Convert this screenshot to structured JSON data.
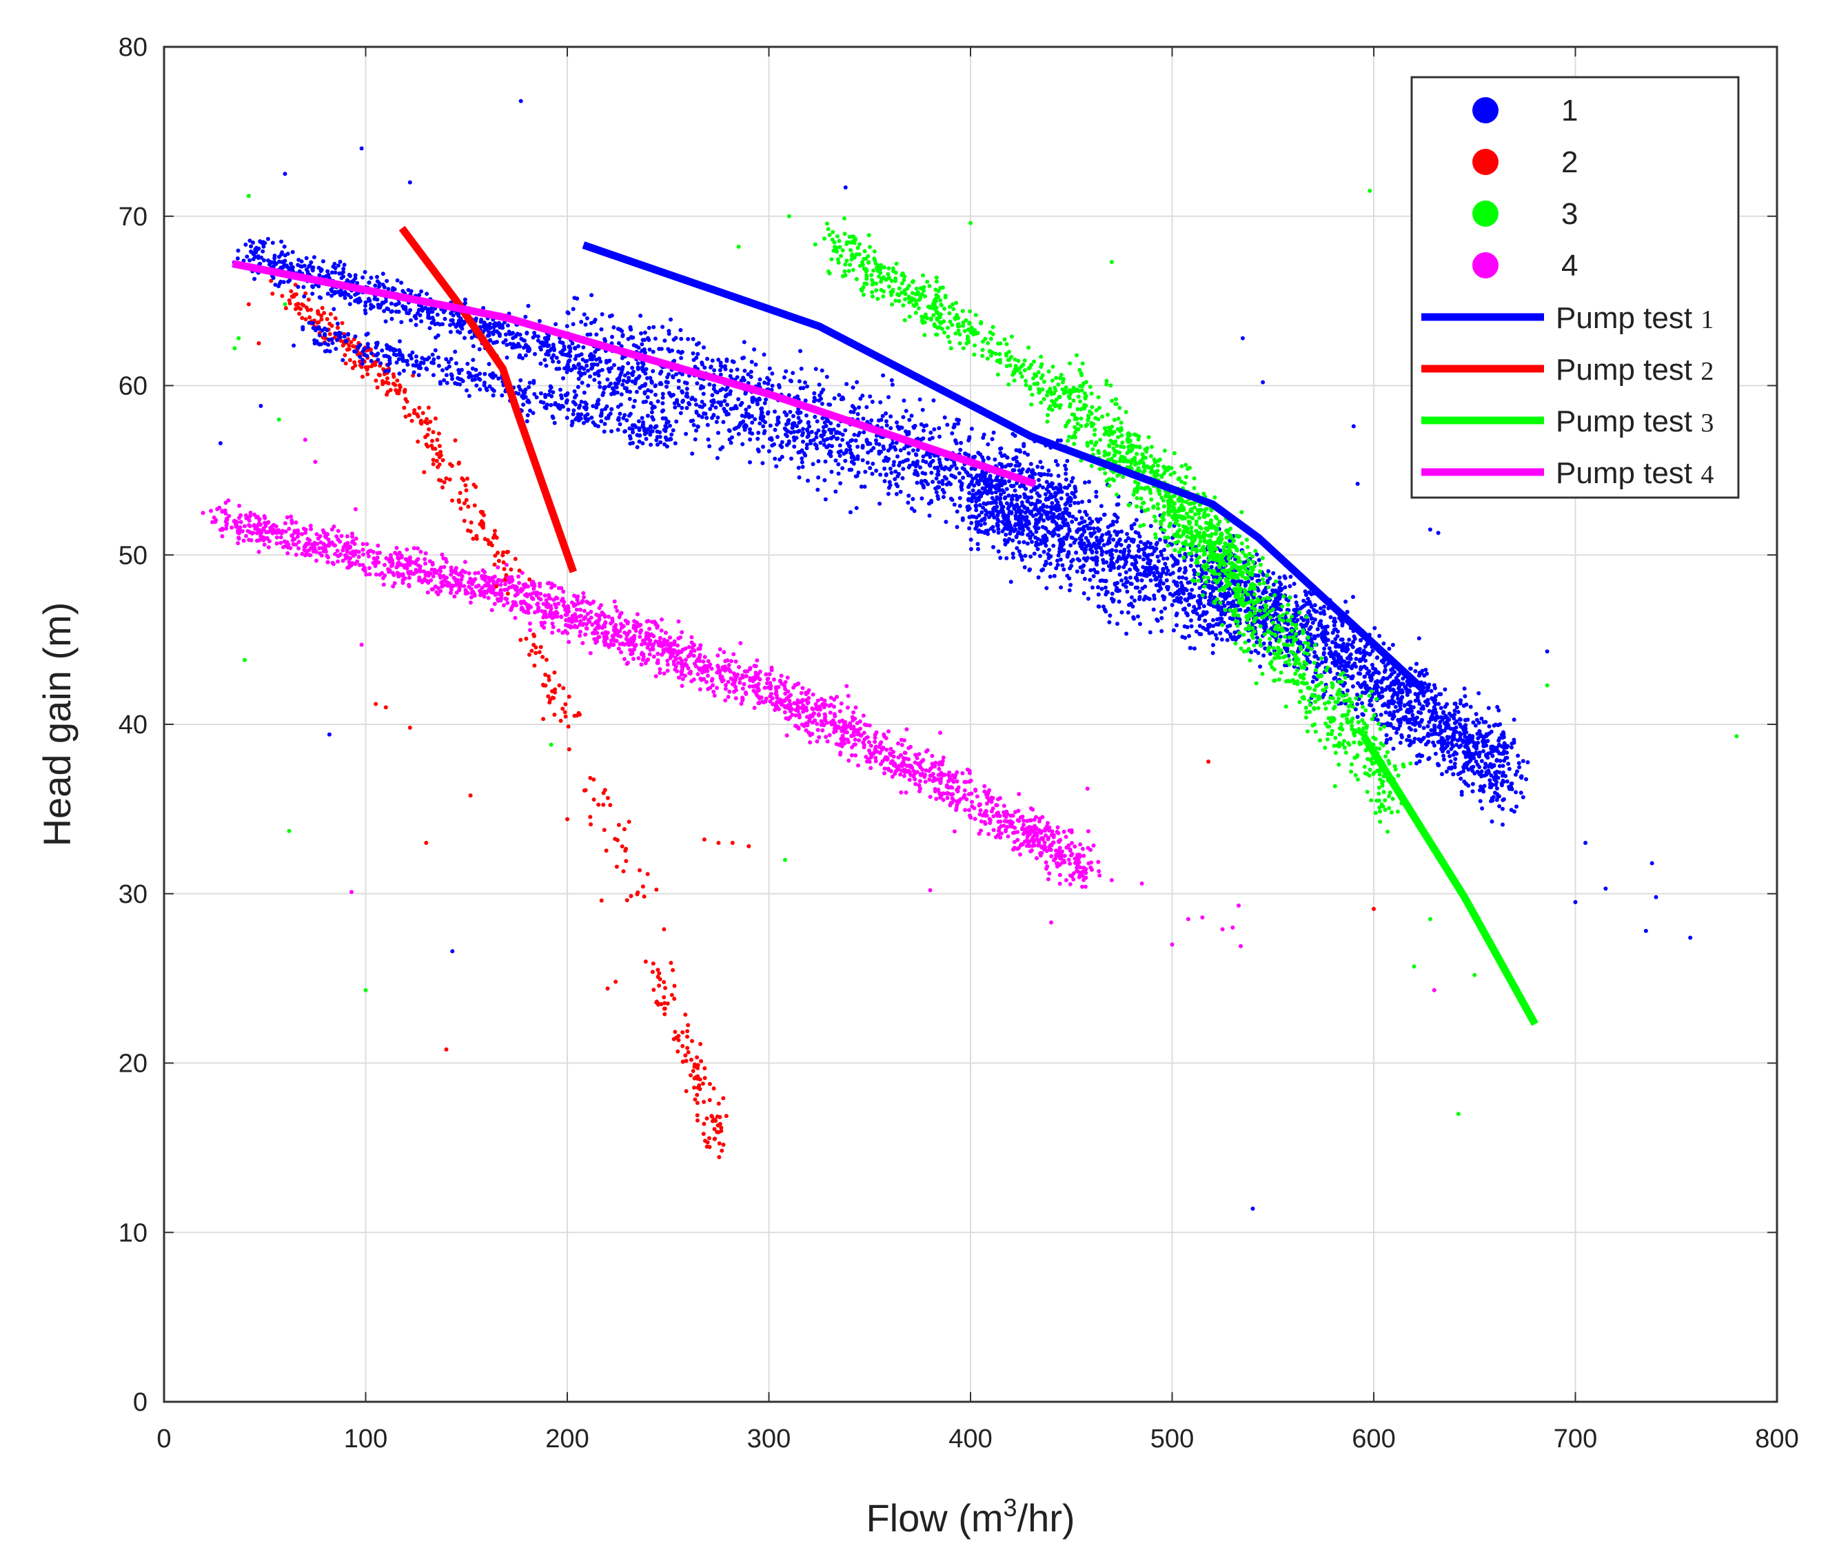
{
  "chart_data": {
    "type": "scatter",
    "title": "",
    "xlabel": {
      "prefix": "Flow (m",
      "sup": "3",
      "suffix": "/hr)"
    },
    "ylabel": "Head gain (m)",
    "xlim": [
      0,
      800
    ],
    "ylim": [
      0,
      80
    ],
    "xticks": [
      "0",
      "100",
      "200",
      "300",
      "400",
      "500",
      "600",
      "700",
      "800"
    ],
    "yticks": [
      "0",
      "10",
      "20",
      "30",
      "40",
      "50",
      "60",
      "70",
      "80"
    ],
    "grid": true,
    "legend_position": "top-right",
    "scatter_series": [
      {
        "name": "1",
        "color": "#0000ff",
        "clouds": [
          {
            "x0": 40,
            "x1": 200,
            "y0": 67.8,
            "y1": 62.0,
            "spread": 1.0,
            "n": 600
          },
          {
            "x0": 70,
            "x1": 250,
            "y0": 63.3,
            "y1": 57.0,
            "spread": 0.8,
            "n": 400
          },
          {
            "x0": 200,
            "x1": 450,
            "y0": 62.0,
            "y1": 53.0,
            "spread": 2.5,
            "n": 1500
          },
          {
            "x0": 400,
            "x1": 530,
            "y0": 53.5,
            "y1": 47.0,
            "spread": 2.5,
            "n": 1100
          },
          {
            "x0": 520,
            "x1": 670,
            "y0": 49.0,
            "y1": 37.0,
            "spread": 2.2,
            "n": 1500
          }
        ],
        "outliers": [
          [
            60,
            72.5
          ],
          [
            98,
            74
          ],
          [
            177,
            76.8
          ],
          [
            122,
            72
          ],
          [
            338,
            71.7
          ],
          [
            535,
            62.8
          ],
          [
            545,
            60.2
          ],
          [
            590,
            57.6
          ],
          [
            592,
            54.2
          ],
          [
            628,
            51.5
          ],
          [
            632,
            51.3
          ],
          [
            686,
            44.3
          ],
          [
            705,
            33.0
          ],
          [
            715,
            30.3
          ],
          [
            700,
            29.5
          ],
          [
            738,
            31.8
          ],
          [
            740,
            29.8
          ],
          [
            735,
            27.8
          ],
          [
            757,
            27.4
          ],
          [
            540,
            11.4
          ],
          [
            143,
            26.6
          ],
          [
            82,
            39.4
          ],
          [
            28,
            56.6
          ],
          [
            48,
            58.8
          ]
        ]
      },
      {
        "name": "2",
        "color": "#ff0000",
        "clouds": [
          {
            "x0": 60,
            "x1": 120,
            "y0": 65.5,
            "y1": 59.5,
            "spread": 0.6,
            "n": 150
          },
          {
            "x0": 120,
            "x1": 175,
            "y0": 59.5,
            "y1": 48.0,
            "spread": 0.8,
            "n": 120
          },
          {
            "x0": 180,
            "x1": 205,
            "y0": 45.0,
            "y1": 39.5,
            "spread": 1.2,
            "n": 45
          },
          {
            "x0": 245,
            "x1": 278,
            "y0": 26.0,
            "y1": 14.5,
            "spread": 0.4,
            "n": 110
          },
          {
            "x0": 205,
            "x1": 240,
            "y0": 37.5,
            "y1": 30.0,
            "spread": 1.2,
            "n": 35
          }
        ],
        "outliers": [
          [
            268,
            33.2
          ],
          [
            275,
            33.0
          ],
          [
            282,
            33.0
          ],
          [
            290,
            32.8
          ],
          [
            47,
            62.5
          ],
          [
            42,
            64.8
          ],
          [
            105,
            41.2
          ],
          [
            110,
            41.0
          ],
          [
            122,
            39.8
          ],
          [
            130,
            33.0
          ],
          [
            140,
            20.8
          ],
          [
            152,
            35.8
          ],
          [
            200,
            34.4
          ],
          [
            224,
            24.8
          ],
          [
            220,
            24.4
          ],
          [
            248,
            27.9
          ],
          [
            217,
            29.6
          ],
          [
            518,
            37.8
          ],
          [
            600,
            29.1
          ]
        ]
      },
      {
        "name": "3",
        "color": "#00ff00",
        "clouds": [
          {
            "x0": 330,
            "x1": 450,
            "y0": 68.5,
            "y1": 59.0,
            "spread": 1.2,
            "n": 420
          },
          {
            "x0": 450,
            "x1": 540,
            "y0": 59.0,
            "y1": 48.5,
            "spread": 2.0,
            "n": 600
          },
          {
            "x0": 500,
            "x1": 610,
            "y0": 53.0,
            "y1": 36.5,
            "spread": 2.3,
            "n": 700
          }
        ],
        "outliers": [
          [
            42,
            71.2
          ],
          [
            35,
            62.2
          ],
          [
            37,
            62.8
          ],
          [
            60,
            64.8
          ],
          [
            57,
            58.0
          ],
          [
            40,
            43.8
          ],
          [
            62,
            33.7
          ],
          [
            100,
            24.3
          ],
          [
            310,
            70.0
          ],
          [
            285,
            68.2
          ],
          [
            400,
            69.6
          ],
          [
            470,
            67.3
          ],
          [
            628,
            28.5
          ],
          [
            642,
            17.0
          ],
          [
            650,
            25.2
          ],
          [
            620,
            25.7
          ],
          [
            598,
            71.5
          ],
          [
            780,
            39.3
          ],
          [
            686,
            42.3
          ],
          [
            308,
            32.0
          ],
          [
            192,
            38.8
          ]
        ]
      },
      {
        "name": "4",
        "color": "#ff00ff",
        "clouds": [
          {
            "x0": 28,
            "x1": 170,
            "y0": 52.0,
            "y1": 47.8,
            "spread": 0.9,
            "n": 600
          },
          {
            "x0": 170,
            "x1": 320,
            "y0": 48.0,
            "y1": 41.0,
            "spread": 1.2,
            "n": 800
          },
          {
            "x0": 320,
            "x1": 460,
            "y0": 41.0,
            "y1": 31.5,
            "spread": 1.2,
            "n": 700
          }
        ],
        "outliers": [
          [
            70,
            56.8
          ],
          [
            75,
            55.5
          ],
          [
            95,
            52.7
          ],
          [
            93,
            30.1
          ],
          [
            98,
            44.7
          ],
          [
            470,
            30.8
          ],
          [
            485,
            30.6
          ],
          [
            500,
            27.0
          ],
          [
            508,
            28.5
          ],
          [
            515,
            28.6
          ],
          [
            525,
            27.9
          ],
          [
            530,
            28.0
          ],
          [
            533,
            29.3
          ],
          [
            534,
            26.9
          ],
          [
            458,
            36.2
          ],
          [
            385,
            39.5
          ],
          [
            357,
            39.4
          ],
          [
            630,
            24.3
          ],
          [
            380,
            30.2
          ],
          [
            440,
            28.3
          ]
        ]
      }
    ],
    "line_series": [
      {
        "name": "Pump test",
        "name_suffix": "1",
        "color": "#0000ff",
        "x": [
          208,
          325,
          430,
          520,
          543,
          625
        ],
        "y": [
          68.3,
          63.5,
          57.0,
          53.0,
          51.0,
          42.0
        ]
      },
      {
        "name": "Pump test",
        "name_suffix": "2",
        "color": "#ff0000",
        "x": [
          118,
          145,
          168,
          175,
          203
        ],
        "y": [
          69.3,
          65.0,
          61.0,
          58.5,
          49.0
        ]
      },
      {
        "name": "Pump test",
        "name_suffix": "3",
        "color": "#00ff00",
        "x": [
          595,
          645,
          680
        ],
        "y": [
          39.3,
          29.8,
          22.3
        ]
      },
      {
        "name": "Pump test",
        "name_suffix": "4",
        "color": "#ff00ff",
        "x": [
          34,
          170,
          300,
          432
        ],
        "y": [
          67.2,
          64.0,
          59.5,
          54.2
        ]
      }
    ]
  }
}
